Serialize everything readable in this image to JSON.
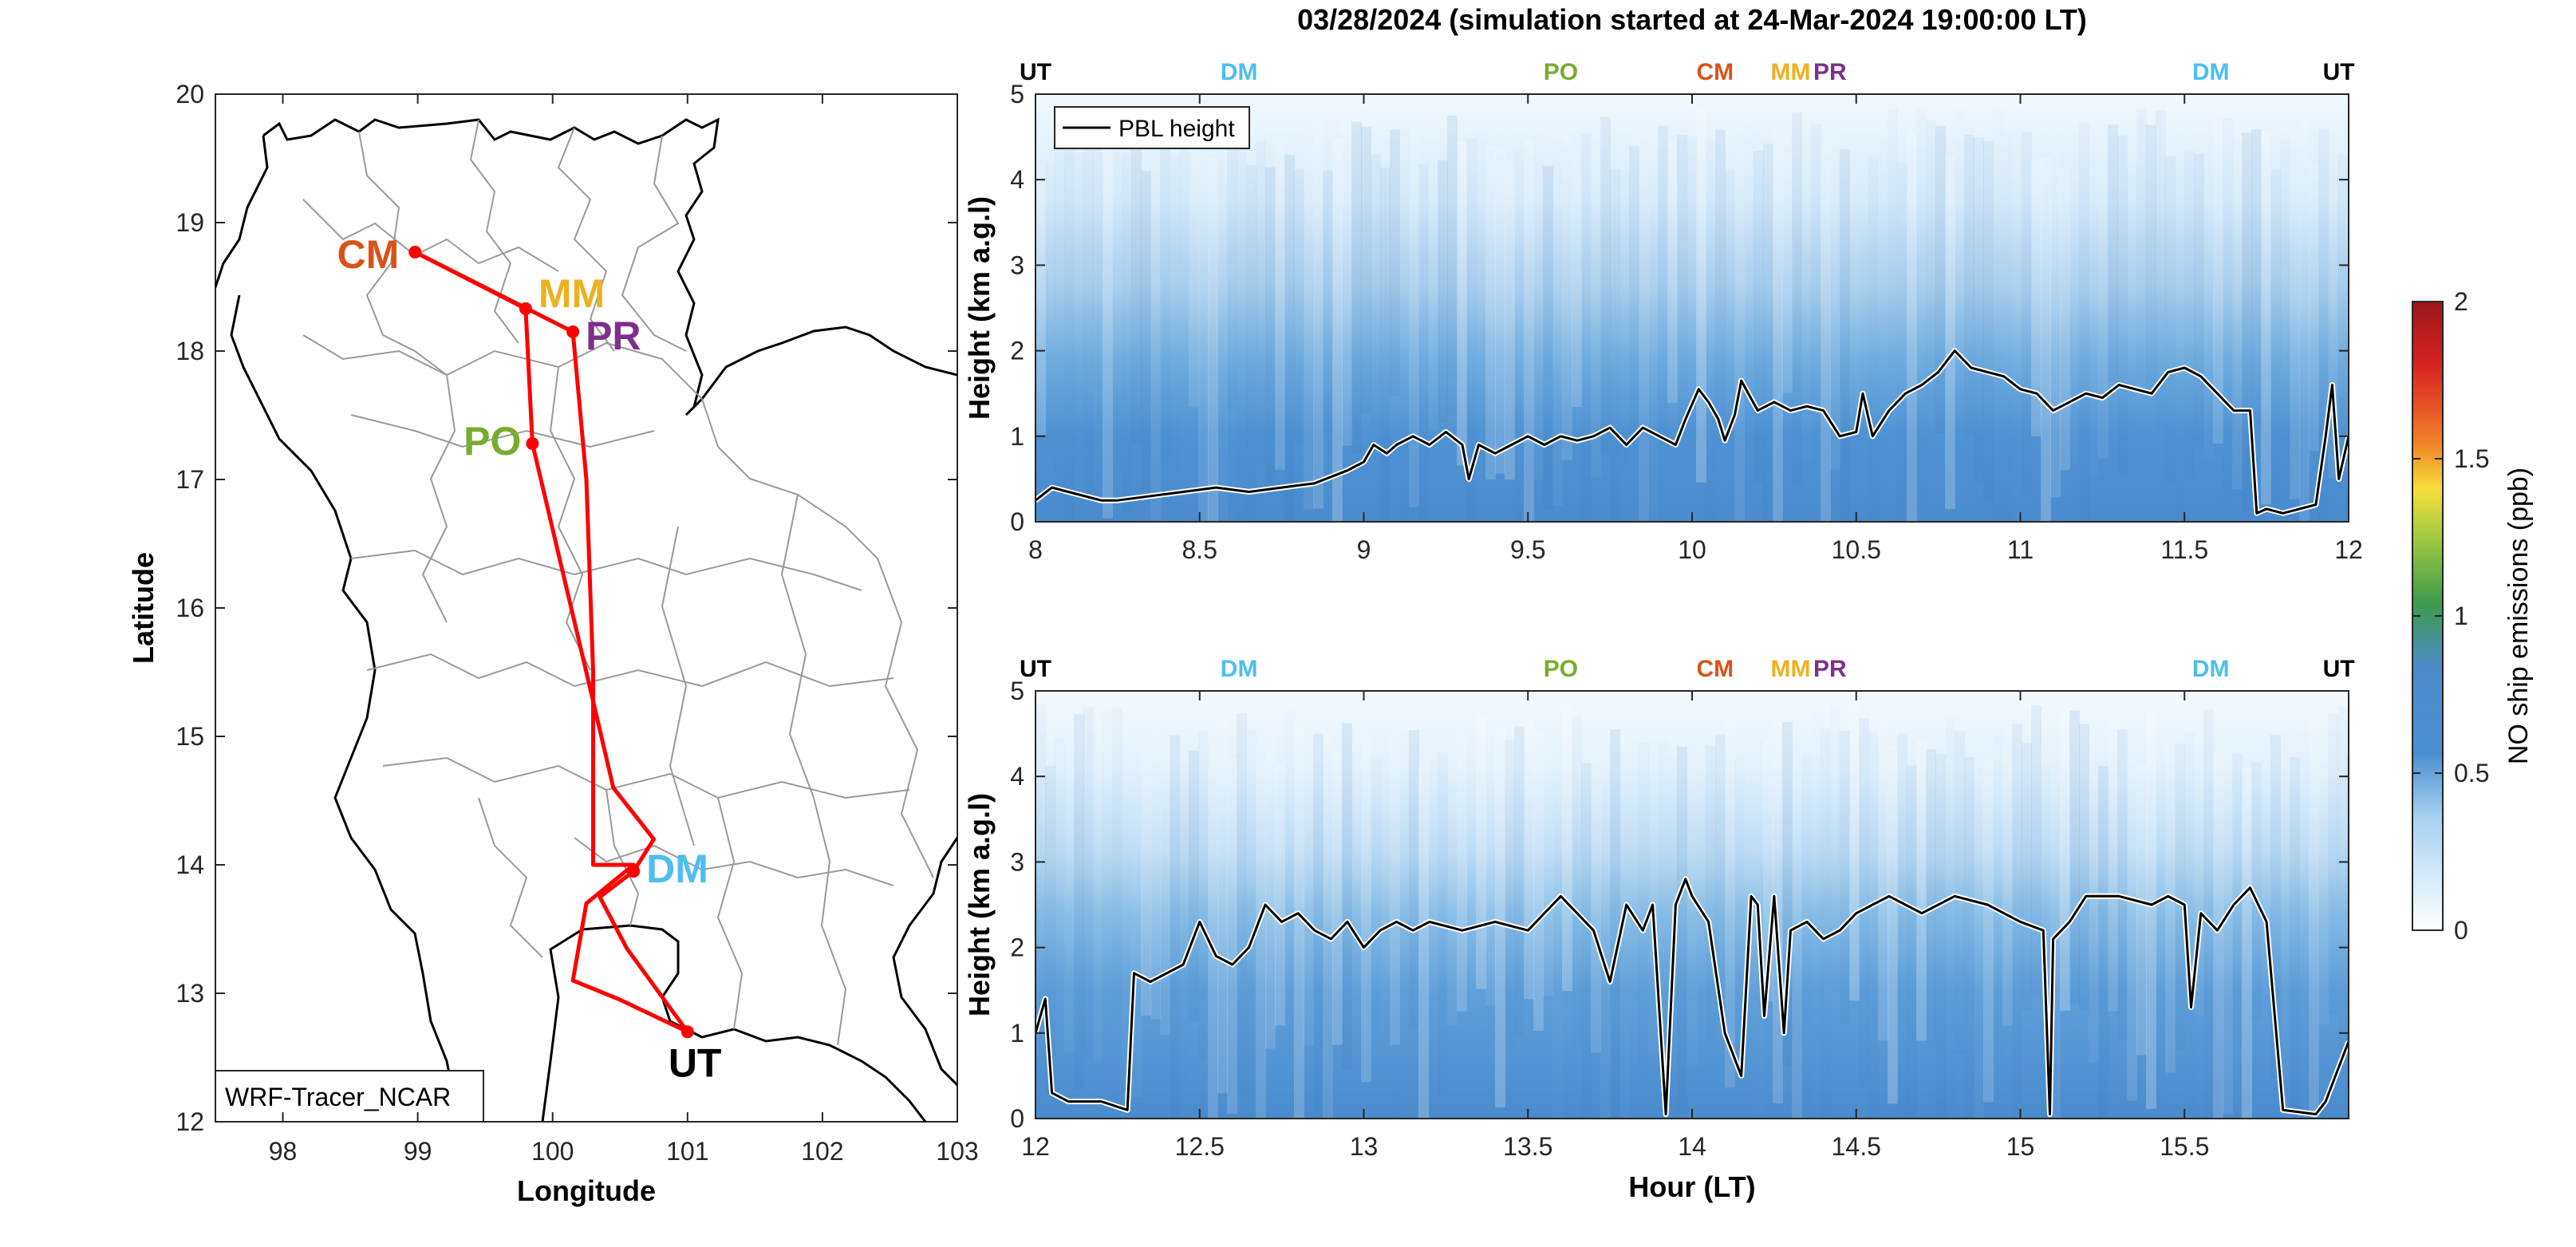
{
  "figure": {
    "title": "03/28/2024 (simulation started at 24-Mar-2024 19:00:00 LT)"
  },
  "colors": {
    "UT": "#000000",
    "DM": "#4DBEEE",
    "PO": "#77AC30",
    "CM": "#D95319",
    "MM": "#EDB120",
    "PR": "#7E2F8E",
    "route": "#FF0000",
    "pbl": "#000000",
    "boundary": "#999999",
    "coast": "#000000"
  },
  "chart_data": [
    {
      "type": "map",
      "xlabel": "Longitude",
      "ylabel": "Latitude",
      "xlim": [
        97.5,
        103
      ],
      "ylim": [
        12,
        20
      ],
      "xticks": [
        "98",
        "99",
        "100",
        "101",
        "102",
        "103"
      ],
      "yticks": [
        "12",
        "13",
        "14",
        "15",
        "16",
        "17",
        "18",
        "19",
        "20"
      ],
      "annotation": "WRF-Tracer_NCAR",
      "sites": [
        {
          "label": "CM",
          "lon": 98.98,
          "lat": 18.77
        },
        {
          "label": "MM",
          "lon": 99.8,
          "lat": 18.33
        },
        {
          "label": "PR",
          "lon": 100.15,
          "lat": 18.15
        },
        {
          "label": "PO",
          "lon": 99.85,
          "lat": 17.28
        },
        {
          "label": "DM",
          "lon": 100.6,
          "lat": 13.95
        },
        {
          "label": "UT",
          "lon": 101.0,
          "lat": 12.7
        }
      ],
      "route": [
        [
          101.0,
          12.7
        ],
        [
          100.55,
          13.35
        ],
        [
          100.35,
          13.75
        ],
        [
          100.6,
          13.95
        ],
        [
          100.75,
          14.2
        ],
        [
          100.45,
          14.6
        ],
        [
          100.25,
          15.5
        ],
        [
          99.85,
          17.28
        ],
        [
          99.8,
          18.33
        ],
        [
          98.98,
          18.77
        ],
        [
          100.15,
          18.15
        ],
        [
          100.25,
          17.0
        ],
        [
          100.3,
          15.5
        ],
        [
          100.3,
          14.0
        ],
        [
          100.6,
          14.0
        ],
        [
          100.25,
          13.7
        ],
        [
          100.15,
          13.1
        ],
        [
          100.5,
          12.95
        ],
        [
          101.0,
          12.7
        ]
      ]
    },
    {
      "type": "heatmap",
      "ylabel": "Height (km a.g.l)",
      "xlim": [
        8,
        12
      ],
      "ylim": [
        0,
        5
      ],
      "xticks": [
        "8",
        "8.5",
        "9",
        "9.5",
        "10",
        "10.5",
        "11",
        "11.5",
        "12"
      ],
      "yticks": [
        "0",
        "1",
        "2",
        "3",
        "4",
        "5"
      ],
      "legend": "PBL height",
      "legend_position": "top-left",
      "site_markers": [
        {
          "label": "UT",
          "x": 8.0
        },
        {
          "label": "DM",
          "x": 8.62
        },
        {
          "label": "PO",
          "x": 9.6
        },
        {
          "label": "CM",
          "x": 10.07
        },
        {
          "label": "MM",
          "x": 10.3
        },
        {
          "label": "PR",
          "x": 10.42
        },
        {
          "label": "DM",
          "x": 11.58
        },
        {
          "label": "UT",
          "x": 11.97
        }
      ],
      "pbl": {
        "x": [
          8.0,
          8.05,
          8.1,
          8.2,
          8.25,
          8.35,
          8.45,
          8.55,
          8.65,
          8.75,
          8.85,
          8.95,
          9.0,
          9.03,
          9.07,
          9.1,
          9.15,
          9.2,
          9.25,
          9.3,
          9.32,
          9.35,
          9.4,
          9.45,
          9.5,
          9.55,
          9.6,
          9.65,
          9.7,
          9.75,
          9.8,
          9.85,
          9.9,
          9.95,
          9.98,
          10.02,
          10.05,
          10.08,
          10.1,
          10.13,
          10.15,
          10.2,
          10.25,
          10.3,
          10.35,
          10.4,
          10.45,
          10.5,
          10.52,
          10.55,
          10.6,
          10.65,
          10.7,
          10.75,
          10.8,
          10.85,
          10.9,
          10.95,
          11.0,
          11.05,
          11.1,
          11.15,
          11.2,
          11.25,
          11.3,
          11.35,
          11.4,
          11.45,
          11.5,
          11.55,
          11.6,
          11.65,
          11.7,
          11.72,
          11.75,
          11.8,
          11.85,
          11.9,
          11.93,
          11.95,
          11.97,
          12.0
        ],
        "y": [
          0.25,
          0.4,
          0.35,
          0.25,
          0.25,
          0.3,
          0.35,
          0.4,
          0.35,
          0.4,
          0.45,
          0.6,
          0.7,
          0.9,
          0.8,
          0.9,
          1.0,
          0.9,
          1.05,
          0.9,
          0.5,
          0.9,
          0.8,
          0.9,
          1.0,
          0.9,
          1.0,
          0.95,
          1.0,
          1.1,
          0.9,
          1.1,
          1.0,
          0.9,
          1.2,
          1.55,
          1.4,
          1.2,
          0.95,
          1.25,
          1.65,
          1.3,
          1.4,
          1.3,
          1.35,
          1.3,
          1.0,
          1.05,
          1.5,
          1.0,
          1.3,
          1.5,
          1.6,
          1.75,
          2.0,
          1.8,
          1.75,
          1.7,
          1.55,
          1.5,
          1.3,
          1.4,
          1.5,
          1.45,
          1.6,
          1.55,
          1.5,
          1.75,
          1.8,
          1.7,
          1.5,
          1.3,
          1.3,
          0.1,
          0.15,
          0.1,
          0.15,
          0.2,
          1.0,
          1.6,
          0.5,
          1.0
        ]
      }
    },
    {
      "type": "heatmap",
      "xlabel": "Hour (LT)",
      "ylabel": "Height (km a.g.l)",
      "xlim": [
        12,
        16
      ],
      "ylim": [
        0,
        5
      ],
      "xticks": [
        "12",
        "12.5",
        "13",
        "13.5",
        "14",
        "14.5",
        "15",
        "15.5"
      ],
      "yticks": [
        "0",
        "1",
        "2",
        "3",
        "4",
        "5"
      ],
      "site_markers": [
        {
          "label": "UT",
          "x": 12.0
        },
        {
          "label": "DM",
          "x": 12.62
        },
        {
          "label": "PO",
          "x": 13.6
        },
        {
          "label": "CM",
          "x": 14.07
        },
        {
          "label": "MM",
          "x": 14.3
        },
        {
          "label": "PR",
          "x": 14.42
        },
        {
          "label": "DM",
          "x": 15.58
        },
        {
          "label": "UT",
          "x": 15.97
        }
      ],
      "pbl": {
        "x": [
          12.0,
          12.03,
          12.05,
          12.1,
          12.2,
          12.28,
          12.3,
          12.35,
          12.4,
          12.45,
          12.5,
          12.55,
          12.6,
          12.65,
          12.7,
          12.75,
          12.8,
          12.85,
          12.9,
          12.95,
          13.0,
          13.05,
          13.1,
          13.15,
          13.2,
          13.3,
          13.4,
          13.5,
          13.6,
          13.7,
          13.75,
          13.8,
          13.85,
          13.88,
          13.92,
          13.95,
          13.98,
          14.0,
          14.05,
          14.1,
          14.15,
          14.18,
          14.2,
          14.22,
          14.25,
          14.28,
          14.3,
          14.35,
          14.4,
          14.45,
          14.5,
          14.55,
          14.6,
          14.7,
          14.8,
          14.9,
          15.0,
          15.07,
          15.09,
          15.1,
          15.15,
          15.2,
          15.3,
          15.4,
          15.45,
          15.5,
          15.52,
          15.55,
          15.6,
          15.65,
          15.7,
          15.75,
          15.8,
          15.9,
          15.93,
          15.96,
          16.0
        ],
        "y": [
          1.0,
          1.4,
          0.3,
          0.2,
          0.2,
          0.1,
          1.7,
          1.6,
          1.7,
          1.8,
          2.3,
          1.9,
          1.8,
          2.0,
          2.5,
          2.3,
          2.4,
          2.2,
          2.1,
          2.3,
          2.0,
          2.2,
          2.3,
          2.2,
          2.3,
          2.2,
          2.3,
          2.2,
          2.6,
          2.2,
          1.6,
          2.5,
          2.2,
          2.5,
          0.05,
          2.5,
          2.8,
          2.6,
          2.3,
          1.0,
          0.5,
          2.6,
          2.5,
          1.2,
          2.6,
          1.0,
          2.2,
          2.3,
          2.1,
          2.2,
          2.4,
          2.5,
          2.6,
          2.4,
          2.6,
          2.5,
          2.3,
          2.2,
          0.05,
          2.1,
          2.3,
          2.6,
          2.6,
          2.5,
          2.6,
          2.5,
          1.3,
          2.4,
          2.2,
          2.5,
          2.7,
          2.3,
          0.1,
          0.05,
          0.2,
          0.5,
          0.9
        ]
      }
    },
    {
      "type": "colorbar",
      "label": "NO ship emissions (ppb)",
      "lim": [
        0,
        2
      ],
      "ticks": [
        "0",
        "0.5",
        "1",
        "1.5",
        "2"
      ],
      "colors": [
        "#FFFFFF",
        "#A6D2F0",
        "#4A8FD0",
        "#3E9A4C",
        "#F5E03A",
        "#F07D26",
        "#D72221",
        "#9A1818"
      ]
    }
  ]
}
